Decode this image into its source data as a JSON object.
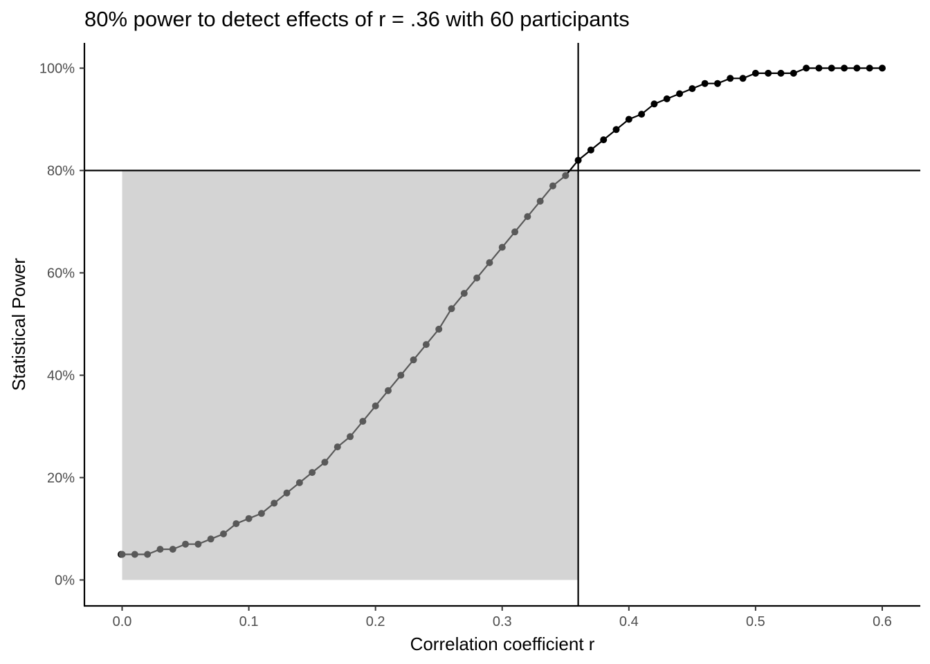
{
  "chart_data": {
    "type": "line",
    "title": "80% power to detect effects of r = .36 with 60 participants",
    "xlabel": "Correlation coefficient r",
    "ylabel": "Statistical Power",
    "xlim": [
      -0.03,
      0.6
    ],
    "ylim": [
      -5,
      105
    ],
    "x_ticks": [
      0.0,
      0.1,
      0.2,
      0.3,
      0.4,
      0.5,
      0.6
    ],
    "x_tick_labels": [
      "0.0",
      "0.1",
      "0.2",
      "0.3",
      "0.4",
      "0.5",
      "0.6"
    ],
    "y_ticks": [
      0,
      20,
      40,
      60,
      80,
      100
    ],
    "y_tick_labels": [
      "0%",
      "20%",
      "40%",
      "60%",
      "80%",
      "100%"
    ],
    "grid": false,
    "reference_lines": {
      "vertical_x": 0.36,
      "horizontal_y": 80
    },
    "shaded_region": {
      "x": [
        0,
        0.36
      ],
      "y": [
        0,
        80
      ],
      "color": "#d4d4d4"
    },
    "colors": {
      "below_threshold": "#595959",
      "above_threshold": "#000000"
    },
    "series": [
      {
        "x": [
          0.0,
          0.01,
          0.02,
          0.03,
          0.04,
          0.05,
          0.06,
          0.07,
          0.08,
          0.09,
          0.1,
          0.11,
          0.12,
          0.13,
          0.14,
          0.15,
          0.16,
          0.17,
          0.18,
          0.19,
          0.2,
          0.21,
          0.22,
          0.23,
          0.24,
          0.25,
          0.26,
          0.27,
          0.28,
          0.29,
          0.3,
          0.31,
          0.32,
          0.33,
          0.34,
          0.35,
          0.36,
          0.37,
          0.38,
          0.39,
          0.4,
          0.41,
          0.42,
          0.43,
          0.44,
          0.45,
          0.46,
          0.47,
          0.48,
          0.49,
          0.5,
          0.51,
          0.52,
          0.53,
          0.54,
          0.55,
          0.56,
          0.57,
          0.58,
          0.59,
          0.6
        ],
        "values": [
          5,
          5,
          5,
          6,
          6,
          7,
          7,
          8,
          9,
          11,
          12,
          13,
          15,
          17,
          19,
          21,
          23,
          26,
          28,
          31,
          34,
          37,
          40,
          43,
          46,
          49,
          53,
          56,
          59,
          62,
          65,
          68,
          71,
          74,
          77,
          79,
          82,
          84,
          86,
          88,
          90,
          91,
          93,
          94,
          95,
          96,
          97,
          97,
          98,
          98,
          99,
          99,
          99,
          99,
          100,
          100,
          100,
          100,
          100,
          100,
          100
        ]
      }
    ]
  }
}
